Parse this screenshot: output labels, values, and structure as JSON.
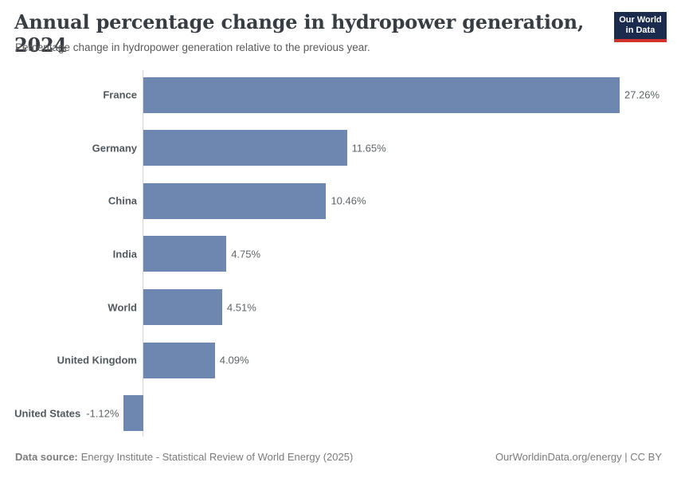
{
  "header": {
    "title": "Annual percentage change in hydropower generation, 2024",
    "subtitle": "Percentage change in hydropower generation relative to the previous year.",
    "logo": {
      "line1": "Our World",
      "line2": "in Data",
      "bg_color": "#1b2b4e",
      "accent_color": "#d0342c"
    }
  },
  "chart_data": {
    "type": "bar",
    "orientation": "horizontal",
    "title": "Annual percentage change in hydropower generation, 2024",
    "categories": [
      "France",
      "Germany",
      "China",
      "India",
      "World",
      "United Kingdom",
      "United States"
    ],
    "values": [
      27.26,
      11.65,
      10.46,
      4.75,
      4.51,
      4.09,
      -1.12
    ],
    "value_labels": [
      "27.26%",
      "11.65%",
      "10.46%",
      "4.75%",
      "4.51%",
      "4.09%",
      "-1.12%"
    ],
    "unit": "%",
    "bar_color": "#6d87b1",
    "axis_line_color": "#d5d5d5",
    "xlim": [
      -1.5,
      28.5
    ],
    "grid": false,
    "legend": "none"
  },
  "footer": {
    "source_label": "Data source:",
    "source_text": "Energy Institute - Statistical Review of World Energy (2025)",
    "credit": "OurWorldinData.org/energy | CC BY"
  }
}
